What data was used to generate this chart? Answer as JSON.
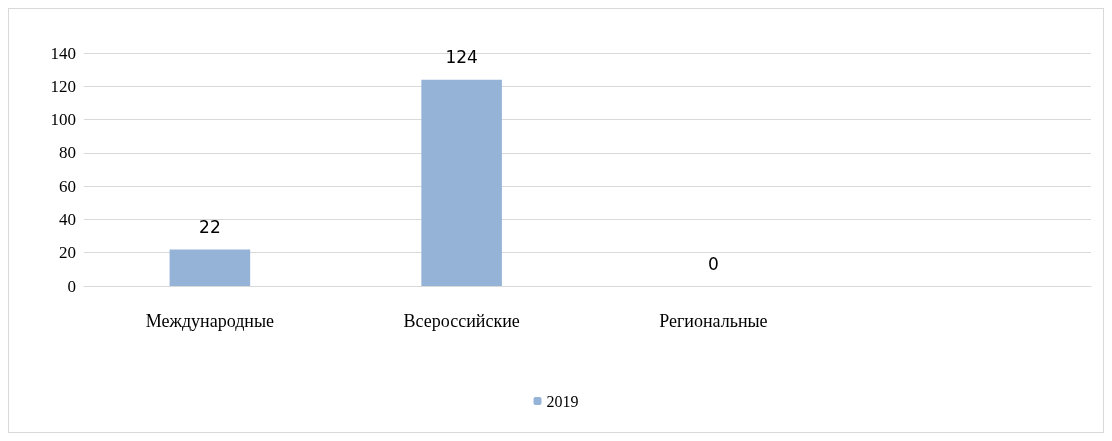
{
  "chart_data": {
    "type": "bar",
    "categories": [
      "Международные",
      "Всероссийские",
      "Региональные",
      null
    ],
    "series": [
      {
        "name": "2019",
        "color": "#95b3d7",
        "values": [
          22,
          124,
          0,
          null
        ]
      }
    ],
    "ylim": [
      0,
      140
    ],
    "yticks": [
      0,
      20,
      40,
      60,
      80,
      100,
      120,
      140
    ],
    "grid": "y",
    "legend": "bottom",
    "data_labels": true
  }
}
